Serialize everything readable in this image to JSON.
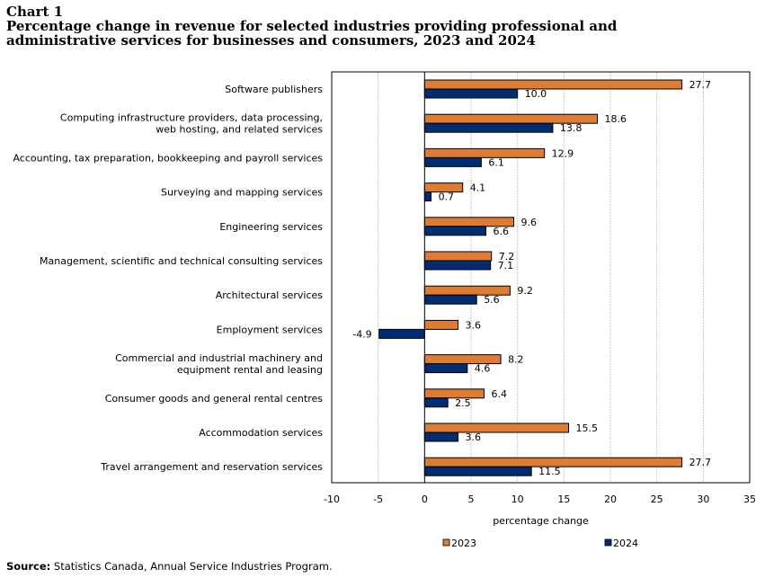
{
  "title": {
    "label": "Chart 1",
    "text": "Percentage change in revenue for selected industries providing professional and administrative services for businesses and consumers, 2023 and 2024"
  },
  "source": {
    "label": "Source:",
    "text": "Statistics Canada, Annual Service Industries Program."
  },
  "chart_data": {
    "type": "bar",
    "orientation": "horizontal",
    "categories": [
      [
        "Software publishers"
      ],
      [
        "Computing infrastructure providers, data processing,",
        "web hosting, and related services"
      ],
      [
        "Accounting, tax preparation, bookkeeping and payroll services"
      ],
      [
        "Surveying and mapping services"
      ],
      [
        "Engineering services"
      ],
      [
        "Management, scientific and technical consulting services"
      ],
      [
        "Architectural services"
      ],
      [
        "Employment services"
      ],
      [
        "Commercial and industrial machinery and",
        "equipment rental and leasing"
      ],
      [
        "Consumer goods and general rental centres"
      ],
      [
        "Accommodation services"
      ],
      [
        "Travel arrangement and reservation services"
      ]
    ],
    "series": [
      {
        "name": "2023",
        "color": "#DD7C32",
        "values": [
          27.7,
          18.6,
          12.9,
          4.1,
          9.6,
          7.2,
          9.2,
          3.6,
          8.2,
          6.4,
          15.5,
          27.7
        ]
      },
      {
        "name": "2024",
        "color": "#002D72",
        "values": [
          10.0,
          13.8,
          6.1,
          0.7,
          6.6,
          7.1,
          5.6,
          -4.9,
          4.6,
          2.5,
          3.6,
          11.5
        ]
      }
    ],
    "xlabel": "percentage change",
    "ylabel": "",
    "xlim": [
      -10,
      35
    ],
    "xticks": [
      -10,
      -5,
      0,
      5,
      10,
      15,
      20,
      25,
      30,
      35
    ],
    "grid": true,
    "legend": "bottom"
  }
}
